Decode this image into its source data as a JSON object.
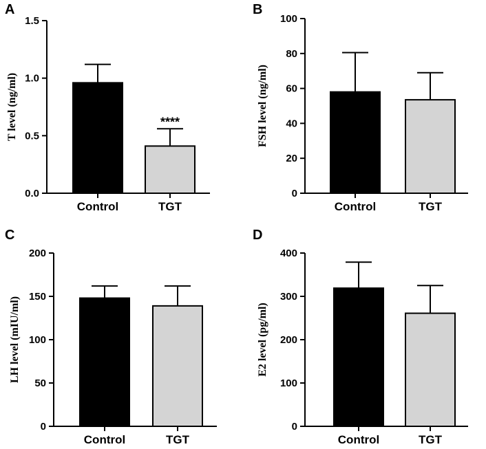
{
  "chart_data": [
    {
      "panel": "A",
      "type": "bar",
      "categories": [
        "Control",
        "TGT"
      ],
      "values": [
        0.96,
        0.41
      ],
      "errors": [
        0.16,
        0.15
      ],
      "significance": [
        "",
        "****"
      ],
      "ylabel": "T level (ng/ml)",
      "ylim": [
        0,
        1.5
      ],
      "yticks": [
        "0.0",
        "0.5",
        "1.0",
        "1.5"
      ],
      "colors": [
        "#000000",
        "#d4d4d4"
      ]
    },
    {
      "panel": "B",
      "type": "bar",
      "categories": [
        "Control",
        "TGT"
      ],
      "values": [
        58,
        53.5
      ],
      "errors": [
        22.5,
        15.5
      ],
      "significance": [
        "",
        ""
      ],
      "ylabel": "FSH level (ng/ml)",
      "ylim": [
        0,
        100
      ],
      "yticks": [
        "0",
        "20",
        "40",
        "60",
        "80",
        "100"
      ],
      "colors": [
        "#000000",
        "#d4d4d4"
      ]
    },
    {
      "panel": "C",
      "type": "bar",
      "categories": [
        "Control",
        "TGT"
      ],
      "values": [
        148,
        139
      ],
      "errors": [
        14,
        23
      ],
      "significance": [
        "",
        ""
      ],
      "ylabel": "LH level (mIU/ml)",
      "ylim": [
        0,
        200
      ],
      "yticks": [
        "0",
        "50",
        "100",
        "150",
        "200"
      ],
      "colors": [
        "#000000",
        "#d4d4d4"
      ]
    },
    {
      "panel": "D",
      "type": "bar",
      "categories": [
        "Control",
        "TGT"
      ],
      "values": [
        319,
        261
      ],
      "errors": [
        60,
        64
      ],
      "significance": [
        "",
        ""
      ],
      "ylabel": "E2 level (pg/ml)",
      "ylim": [
        0,
        400
      ],
      "yticks": [
        "0",
        "100",
        "200",
        "300",
        "400"
      ],
      "colors": [
        "#000000",
        "#d4d4d4"
      ]
    }
  ]
}
